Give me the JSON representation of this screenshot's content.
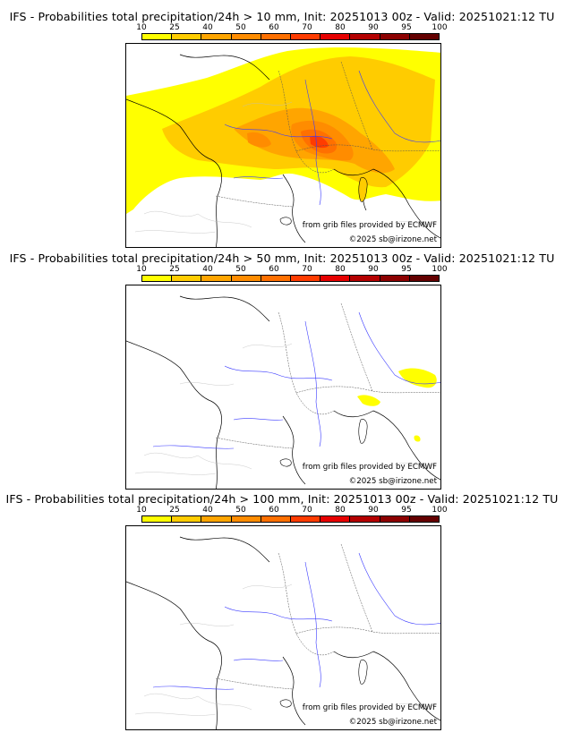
{
  "legend": {
    "ticks": [
      "10",
      "25",
      "40",
      "50",
      "60",
      "70",
      "80",
      "90",
      "95",
      "100"
    ],
    "colors": [
      "#ffff00",
      "#ffcc00",
      "#ffa500",
      "#ff8c00",
      "#ff7000",
      "#ff3c00",
      "#e60000",
      "#b40000",
      "#8c0000",
      "#640000"
    ]
  },
  "credits": {
    "source": "from grib files provided by ECMWF",
    "copyright": "©2025 sb@irizone.net"
  },
  "panels": [
    {
      "title": "IFS - Probabilities total precipitation/24h > 10 mm, Init: 20251013 00z - Valid: 20251021:12 TU",
      "threshold_mm": 10
    },
    {
      "title": "IFS - Probabilities total precipitation/24h > 50 mm, Init: 20251013 00z - Valid: 20251021:12 TU",
      "threshold_mm": 50
    },
    {
      "title": "IFS - Probabilities total precipitation/24h > 100 mm, Init: 20251013 00z - Valid: 20251021:12 TU",
      "threshold_mm": 100
    }
  ]
}
